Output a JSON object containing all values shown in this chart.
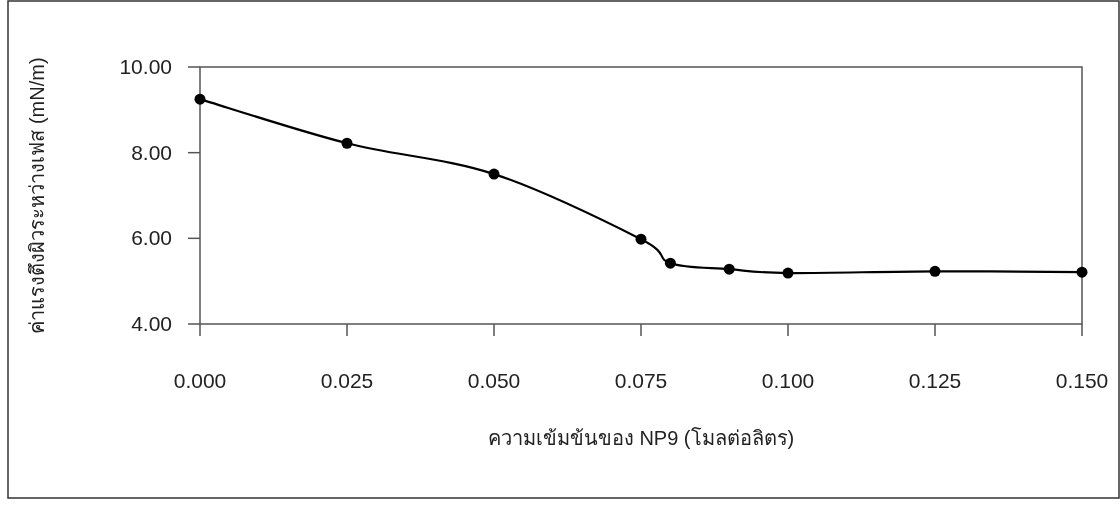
{
  "chart_data": {
    "type": "line",
    "xlabel": "ความเข้มข้นของ NP9 (โมลต่อลิตร)",
    "ylabel": "ค่าแรงตึงผิวระหว่างเฟส (mN/m)",
    "x": [
      0,
      0.025,
      0.05,
      0.075,
      0.08,
      0.09,
      0.1,
      0.125,
      0.15
    ],
    "series": [
      {
        "color": "#000000",
        "values": [
          9.25,
          8.22,
          7.5,
          5.98,
          5.42,
          5.28,
          5.19,
          5.23,
          5.21
        ]
      }
    ],
    "marker": "circle",
    "xlim": [
      0,
      0.15
    ],
    "xticks": [
      {
        "value": 0,
        "label": "0.000"
      },
      {
        "value": 0.025,
        "label": "0.025"
      },
      {
        "value": 0.05,
        "label": "0.050"
      },
      {
        "value": 0.075,
        "label": "0.075"
      },
      {
        "value": 0.1,
        "label": "0.100"
      },
      {
        "value": 0.125,
        "label": "0.125"
      },
      {
        "value": 0.15,
        "label": "0.150"
      }
    ],
    "ylim": [
      4,
      10
    ],
    "yticks": [
      {
        "value": 4,
        "label": "4.00"
      },
      {
        "value": 6,
        "label": "6.00"
      },
      {
        "value": 8,
        "label": "8.00"
      },
      {
        "value": 10,
        "label": "10.00"
      }
    ]
  }
}
